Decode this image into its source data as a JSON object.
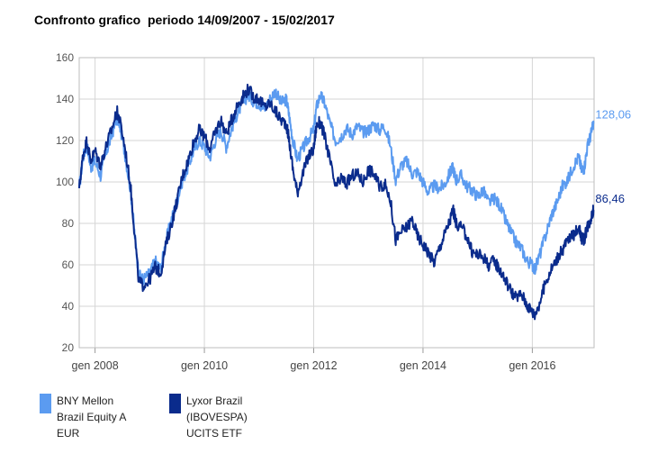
{
  "chart_data": {
    "type": "line",
    "title": "Confronto grafico  periodo 14/09/2007 - 15/02/2017",
    "xlabel": "",
    "ylabel": "",
    "ylim": [
      20,
      160
    ],
    "y_ticks": [
      "20",
      "40",
      "60",
      "80",
      "100",
      "120",
      "140",
      "160"
    ],
    "x_ticks": [
      {
        "label": "gen 2008",
        "t": 2008.0
      },
      {
        "label": "gen 2010",
        "t": 2010.0
      },
      {
        "label": "gen 2012",
        "t": 2012.0
      },
      {
        "label": "gen 2014",
        "t": 2014.0
      },
      {
        "label": "gen 2016",
        "t": 2016.0
      }
    ],
    "grid": true,
    "legend_position": "bottom-left",
    "series": [
      {
        "name": "BNY Mellon\nBrazil Equity A\nEUR",
        "color": "#5b9bf0",
        "last_label": "128,06",
        "points": [
          [
            2007.71,
            97
          ],
          [
            2007.78,
            112
          ],
          [
            2007.85,
            118
          ],
          [
            2007.92,
            107
          ],
          [
            2008.0,
            110
          ],
          [
            2008.1,
            103
          ],
          [
            2008.2,
            114
          ],
          [
            2008.3,
            122
          ],
          [
            2008.4,
            131
          ],
          [
            2008.45,
            128
          ],
          [
            2008.55,
            113
          ],
          [
            2008.65,
            96
          ],
          [
            2008.72,
            76
          ],
          [
            2008.8,
            55
          ],
          [
            2008.88,
            53
          ],
          [
            2009.0,
            56
          ],
          [
            2009.1,
            62
          ],
          [
            2009.2,
            58
          ],
          [
            2009.3,
            72
          ],
          [
            2009.4,
            82
          ],
          [
            2009.5,
            91
          ],
          [
            2009.6,
            101
          ],
          [
            2009.7,
            107
          ],
          [
            2009.8,
            115
          ],
          [
            2009.9,
            120
          ],
          [
            2010.0,
            117
          ],
          [
            2010.1,
            112
          ],
          [
            2010.2,
            120
          ],
          [
            2010.3,
            125
          ],
          [
            2010.4,
            117
          ],
          [
            2010.5,
            126
          ],
          [
            2010.6,
            133
          ],
          [
            2010.7,
            138
          ],
          [
            2010.8,
            142
          ],
          [
            2010.9,
            139
          ],
          [
            2011.0,
            138
          ],
          [
            2011.1,
            135
          ],
          [
            2011.2,
            140
          ],
          [
            2011.3,
            144
          ],
          [
            2011.4,
            138
          ],
          [
            2011.5,
            140
          ],
          [
            2011.55,
            132
          ],
          [
            2011.62,
            120
          ],
          [
            2011.7,
            111
          ],
          [
            2011.8,
            116
          ],
          [
            2011.9,
            121
          ],
          [
            2012.0,
            125
          ],
          [
            2012.05,
            136
          ],
          [
            2012.12,
            142
          ],
          [
            2012.2,
            138
          ],
          [
            2012.3,
            128
          ],
          [
            2012.4,
            120
          ],
          [
            2012.5,
            122
          ],
          [
            2012.6,
            126
          ],
          [
            2012.7,
            123
          ],
          [
            2012.8,
            127
          ],
          [
            2012.9,
            124
          ],
          [
            2013.0,
            125
          ],
          [
            2013.1,
            128
          ],
          [
            2013.2,
            125
          ],
          [
            2013.3,
            127
          ],
          [
            2013.4,
            118
          ],
          [
            2013.5,
            101
          ],
          [
            2013.6,
            108
          ],
          [
            2013.7,
            110
          ],
          [
            2013.8,
            104
          ],
          [
            2013.9,
            105
          ],
          [
            2014.0,
            100
          ],
          [
            2014.1,
            95
          ],
          [
            2014.2,
            98
          ],
          [
            2014.3,
            97
          ],
          [
            2014.4,
            99
          ],
          [
            2014.5,
            105
          ],
          [
            2014.55,
            107
          ],
          [
            2014.6,
            101
          ],
          [
            2014.7,
            103
          ],
          [
            2014.8,
            98
          ],
          [
            2014.9,
            96
          ],
          [
            2015.0,
            93
          ],
          [
            2015.1,
            96
          ],
          [
            2015.2,
            90
          ],
          [
            2015.3,
            92
          ],
          [
            2015.4,
            89
          ],
          [
            2015.5,
            82
          ],
          [
            2015.6,
            76
          ],
          [
            2015.7,
            71
          ],
          [
            2015.8,
            68
          ],
          [
            2015.9,
            62
          ],
          [
            2016.0,
            60
          ],
          [
            2016.05,
            58
          ],
          [
            2016.15,
            66
          ],
          [
            2016.25,
            75
          ],
          [
            2016.35,
            84
          ],
          [
            2016.45,
            90
          ],
          [
            2016.55,
            98
          ],
          [
            2016.65,
            101
          ],
          [
            2016.75,
            108
          ],
          [
            2016.85,
            112
          ],
          [
            2016.9,
            106
          ],
          [
            2016.95,
            107
          ],
          [
            2017.0,
            116
          ],
          [
            2017.05,
            121
          ],
          [
            2017.1,
            126
          ],
          [
            2017.12,
            128.06
          ]
        ]
      },
      {
        "name": "Lyxor Brazil\n(IBOVESPA)\nUCITS ETF",
        "color": "#0a2b8c",
        "last_label": "86,46",
        "points": [
          [
            2007.71,
            97
          ],
          [
            2007.78,
            113
          ],
          [
            2007.85,
            120
          ],
          [
            2007.92,
            110
          ],
          [
            2008.0,
            115
          ],
          [
            2008.1,
            108
          ],
          [
            2008.2,
            117
          ],
          [
            2008.3,
            125
          ],
          [
            2008.4,
            134
          ],
          [
            2008.45,
            130
          ],
          [
            2008.55,
            116
          ],
          [
            2008.65,
            98
          ],
          [
            2008.72,
            76
          ],
          [
            2008.8,
            52
          ],
          [
            2008.88,
            50
          ],
          [
            2009.0,
            53
          ],
          [
            2009.1,
            59
          ],
          [
            2009.2,
            56
          ],
          [
            2009.3,
            70
          ],
          [
            2009.4,
            80
          ],
          [
            2009.5,
            91
          ],
          [
            2009.6,
            103
          ],
          [
            2009.7,
            110
          ],
          [
            2009.8,
            119
          ],
          [
            2009.9,
            125
          ],
          [
            2010.0,
            122
          ],
          [
            2010.1,
            116
          ],
          [
            2010.2,
            124
          ],
          [
            2010.3,
            130
          ],
          [
            2010.4,
            123
          ],
          [
            2010.5,
            130
          ],
          [
            2010.6,
            137
          ],
          [
            2010.7,
            141
          ],
          [
            2010.8,
            145
          ],
          [
            2010.9,
            141
          ],
          [
            2011.0,
            140
          ],
          [
            2011.1,
            136
          ],
          [
            2011.2,
            138
          ],
          [
            2011.3,
            134
          ],
          [
            2011.4,
            130
          ],
          [
            2011.5,
            128
          ],
          [
            2011.55,
            120
          ],
          [
            2011.62,
            106
          ],
          [
            2011.7,
            95
          ],
          [
            2011.8,
            104
          ],
          [
            2011.9,
            112
          ],
          [
            2012.0,
            116
          ],
          [
            2012.05,
            127
          ],
          [
            2012.12,
            129
          ],
          [
            2012.2,
            122
          ],
          [
            2012.3,
            110
          ],
          [
            2012.4,
            97
          ],
          [
            2012.5,
            102
          ],
          [
            2012.6,
            99
          ],
          [
            2012.7,
            103
          ],
          [
            2012.8,
            104
          ],
          [
            2012.9,
            100
          ],
          [
            2013.0,
            106
          ],
          [
            2013.1,
            104
          ],
          [
            2013.2,
            98
          ],
          [
            2013.3,
            99
          ],
          [
            2013.4,
            92
          ],
          [
            2013.5,
            72
          ],
          [
            2013.6,
            76
          ],
          [
            2013.7,
            78
          ],
          [
            2013.8,
            82
          ],
          [
            2013.9,
            74
          ],
          [
            2014.0,
            70
          ],
          [
            2014.1,
            66
          ],
          [
            2014.2,
            61
          ],
          [
            2014.3,
            68
          ],
          [
            2014.4,
            75
          ],
          [
            2014.5,
            82
          ],
          [
            2014.55,
            87
          ],
          [
            2014.6,
            80
          ],
          [
            2014.7,
            78
          ],
          [
            2014.8,
            74
          ],
          [
            2014.9,
            66
          ],
          [
            2015.0,
            65
          ],
          [
            2015.1,
            64
          ],
          [
            2015.2,
            60
          ],
          [
            2015.3,
            62
          ],
          [
            2015.4,
            58
          ],
          [
            2015.5,
            53
          ],
          [
            2015.6,
            48
          ],
          [
            2015.7,
            44
          ],
          [
            2015.8,
            46
          ],
          [
            2015.9,
            41
          ],
          [
            2016.0,
            37
          ],
          [
            2016.05,
            36
          ],
          [
            2016.15,
            43
          ],
          [
            2016.25,
            52
          ],
          [
            2016.35,
            58
          ],
          [
            2016.45,
            63
          ],
          [
            2016.55,
            67
          ],
          [
            2016.65,
            72
          ],
          [
            2016.75,
            74
          ],
          [
            2016.85,
            79
          ],
          [
            2016.9,
            73
          ],
          [
            2016.95,
            72
          ],
          [
            2017.0,
            78
          ],
          [
            2017.05,
            81
          ],
          [
            2017.1,
            85
          ],
          [
            2017.12,
            86.46
          ]
        ]
      }
    ]
  }
}
